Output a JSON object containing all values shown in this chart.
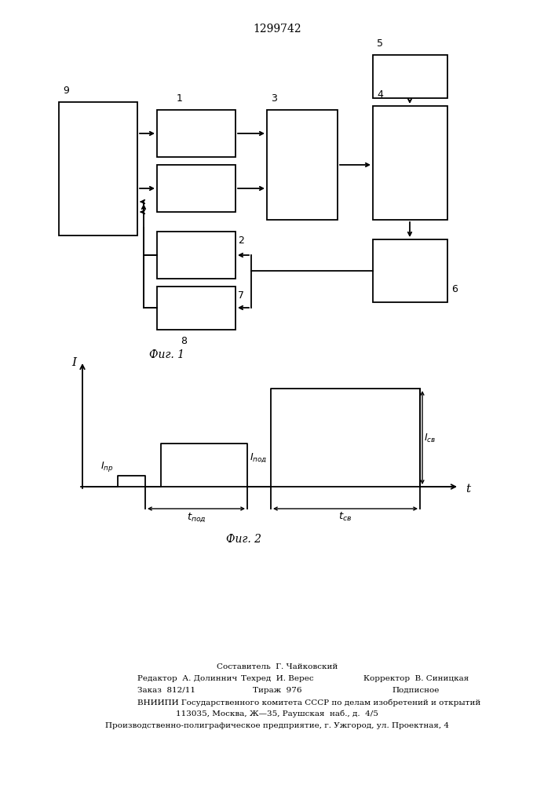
{
  "title": "1299742",
  "fig1_label": "Фиг. 1",
  "fig2_label": "Фиг. 2",
  "bg_color": "#ffffff",
  "footer_lines": [
    "Составитель  Г. Чайковский",
    "Редактор  А. Долиннич",
    "Техред  И. Верес",
    "Корректор  В. Синицкая",
    "Заказ  812/11",
    "Тираж  976",
    "Подписное",
    "ВНИИПИ Государственного комитета СССР по делам изобретений и открытий",
    "113035, Москва, Ж—35, Раушская  наб., д.  4/5",
    "Производственно-полиграфическое предприятие, г. Ужгород, ул. Проектная, 4"
  ]
}
